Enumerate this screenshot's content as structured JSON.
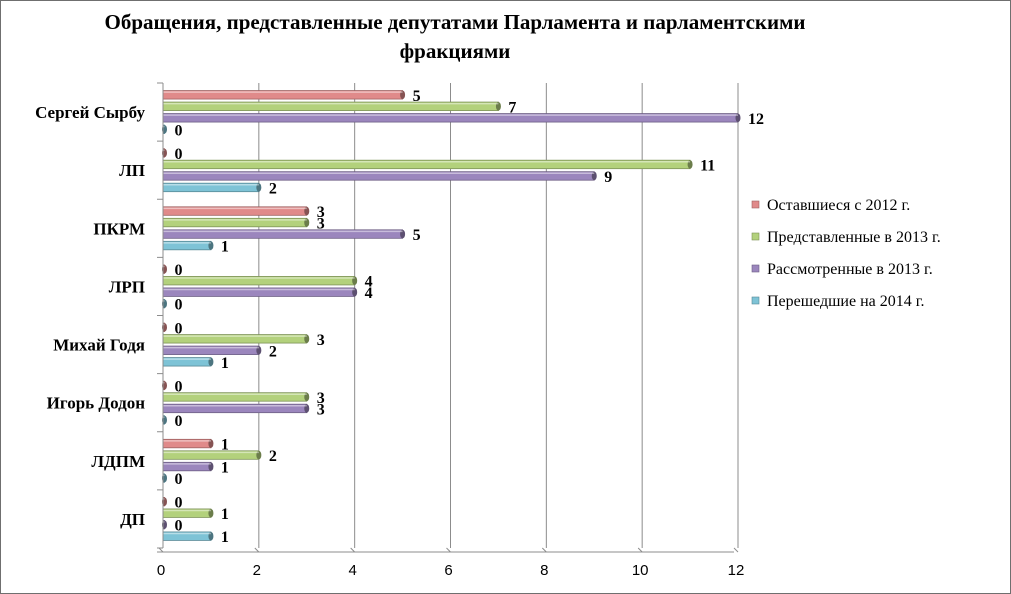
{
  "chart_data": {
    "type": "bar",
    "orientation": "horizontal",
    "title": "Обращения, представленные депутатами  Парламента  и парламентскими  фракциями",
    "categories": [
      "Сергей Сырбу",
      "ЛП",
      "ПКРМ",
      "ЛРП",
      "Михай Годя",
      "Игорь Додон",
      "ЛДПМ",
      "ДП"
    ],
    "series": [
      {
        "name": "Оставшиеся с 2012 г.",
        "color": "#e08a8a",
        "values": [
          5,
          0,
          3,
          0,
          0,
          0,
          1,
          0
        ]
      },
      {
        "name": "Представленные  в  2013 г.",
        "color": "#b3d17c",
        "values": [
          7,
          11,
          3,
          4,
          3,
          3,
          2,
          1
        ]
      },
      {
        "name": "Рассмотренные  в  2013 г.",
        "color": "#9b86bd",
        "values": [
          12,
          9,
          5,
          4,
          2,
          3,
          1,
          0
        ]
      },
      {
        "name": "Перешедшие на 2014 г.",
        "color": "#7ec3d6",
        "values": [
          0,
          2,
          1,
          0,
          1,
          0,
          0,
          1
        ]
      }
    ],
    "xlim": [
      0,
      12
    ],
    "xticks": [
      "0",
      "2",
      "4",
      "6",
      "8",
      "10",
      "12"
    ],
    "grid": true,
    "legend_position": "right"
  }
}
